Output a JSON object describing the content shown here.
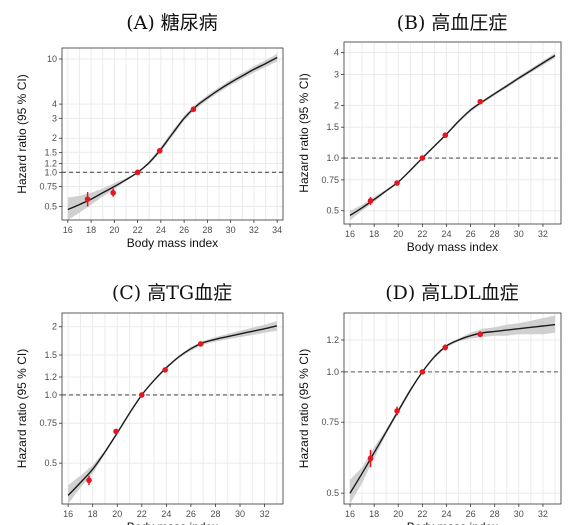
{
  "chart_data": [
    {
      "type": "line",
      "title": "(A) 糖尿病",
      "xlabel": "Body mass index",
      "ylabel": "Hazard ratio (95 % CI)",
      "y_scale": "log",
      "x_range": [
        15.5,
        34.5
      ],
      "y_range": [
        0.38,
        12.5
      ],
      "x_ticks": [
        16,
        18,
        20,
        22,
        24,
        26,
        28,
        30,
        32,
        34
      ],
      "y_ticks": [
        0.5,
        0.75,
        1.0,
        1.2,
        1.5,
        2,
        3,
        4,
        10
      ],
      "y_tick_labels": [
        "0.5",
        "0.75",
        "1.0",
        "1.2",
        "1.5",
        "2",
        "3",
        "4",
        "10"
      ],
      "reference_line": 1.0,
      "curve": {
        "x": [
          16.0,
          17.0,
          18.0,
          19.0,
          20.0,
          21.0,
          22.0,
          23.0,
          24.0,
          25.0,
          26.0,
          27.0,
          28.0,
          29.0,
          30.0,
          31.0,
          32.0,
          33.0,
          34.0
        ],
        "y": [
          0.47,
          0.52,
          0.58,
          0.66,
          0.75,
          0.86,
          1.0,
          1.22,
          1.6,
          2.2,
          3.0,
          3.8,
          4.55,
          5.35,
          6.2,
          7.1,
          8.1,
          9.1,
          10.3
        ],
        "lower": [
          0.38,
          0.44,
          0.52,
          0.61,
          0.71,
          0.84,
          1.0,
          1.18,
          1.52,
          2.08,
          2.85,
          3.62,
          4.33,
          5.08,
          5.88,
          6.7,
          7.6,
          8.5,
          9.5
        ],
        "upper": [
          0.6,
          0.62,
          0.66,
          0.72,
          0.8,
          0.89,
          1.0,
          1.26,
          1.68,
          2.32,
          3.16,
          3.99,
          4.78,
          5.64,
          6.55,
          7.52,
          8.62,
          9.75,
          11.1
        ]
      },
      "points": {
        "x": [
          17.7,
          19.9,
          22.0,
          23.9,
          26.8
        ],
        "y": [
          0.58,
          0.66,
          1.0,
          1.55,
          3.6
        ],
        "lower": [
          0.5,
          0.61,
          1.0,
          1.48,
          3.4
        ],
        "upper": [
          0.67,
          0.72,
          1.0,
          1.63,
          3.8
        ]
      }
    },
    {
      "type": "line",
      "title": "(B) 高血圧症",
      "xlabel": "Body mass index",
      "ylabel": "Hazard ratio (95 % CI)",
      "y_scale": "log",
      "x_range": [
        15.5,
        33.5
      ],
      "y_range": [
        0.42,
        4.6
      ],
      "x_ticks": [
        16,
        18,
        20,
        22,
        24,
        26,
        28,
        30,
        32
      ],
      "y_ticks": [
        0.5,
        0.75,
        1.0,
        1.5,
        2,
        3,
        4
      ],
      "y_tick_labels": [
        "0.5",
        "0.75",
        "1.0",
        "1.5",
        "2",
        "3",
        "4"
      ],
      "reference_line": 1.0,
      "curve": {
        "x": [
          16.0,
          17.0,
          18.0,
          19.0,
          20.0,
          21.0,
          22.0,
          23.0,
          24.0,
          25.0,
          26.0,
          27.0,
          28.0,
          29.0,
          30.0,
          31.0,
          32.0,
          33.0
        ],
        "y": [
          0.47,
          0.52,
          0.58,
          0.65,
          0.73,
          0.85,
          1.0,
          1.17,
          1.37,
          1.62,
          1.88,
          2.1,
          2.33,
          2.58,
          2.86,
          3.16,
          3.49,
          3.85
        ],
        "lower": [
          0.44,
          0.5,
          0.56,
          0.64,
          0.72,
          0.84,
          1.0,
          1.16,
          1.35,
          1.59,
          1.84,
          2.06,
          2.28,
          2.52,
          2.79,
          3.08,
          3.39,
          3.72
        ],
        "upper": [
          0.5,
          0.54,
          0.6,
          0.66,
          0.74,
          0.86,
          1.0,
          1.18,
          1.39,
          1.65,
          1.92,
          2.14,
          2.38,
          2.64,
          2.93,
          3.24,
          3.59,
          3.98
        ]
      },
      "points": {
        "x": [
          17.7,
          19.9,
          22.0,
          23.9,
          26.8
        ],
        "y": [
          0.57,
          0.72,
          1.0,
          1.35,
          2.1
        ],
        "lower": [
          0.54,
          0.7,
          1.0,
          1.32,
          2.05
        ],
        "upper": [
          0.6,
          0.74,
          1.0,
          1.38,
          2.15
        ]
      }
    },
    {
      "type": "line",
      "title": "(C) 高TG血症",
      "xlabel": "Body mass index",
      "ylabel": "Hazard ratio (95 % CI)",
      "y_scale": "log",
      "x_range": [
        15.5,
        33.5
      ],
      "y_range": [
        0.33,
        2.3
      ],
      "x_ticks": [
        16,
        18,
        20,
        22,
        24,
        26,
        28,
        30,
        32
      ],
      "y_ticks": [
        0.5,
        0.75,
        1.0,
        1.2,
        1.5,
        2
      ],
      "y_tick_labels": [
        "0.5",
        "0.75",
        "1.0",
        "1.2",
        "1.5",
        "2"
      ],
      "reference_line": 1.0,
      "curve": {
        "x": [
          16.0,
          17.0,
          18.0,
          19.0,
          20.0,
          21.0,
          22.0,
          23.0,
          24.0,
          25.0,
          26.0,
          27.0,
          28.0,
          29.0,
          30.0,
          31.0,
          32.0,
          33.0
        ],
        "y": [
          0.36,
          0.41,
          0.47,
          0.56,
          0.68,
          0.83,
          1.0,
          1.16,
          1.32,
          1.47,
          1.6,
          1.7,
          1.76,
          1.81,
          1.86,
          1.91,
          1.96,
          2.02
        ],
        "lower": [
          0.33,
          0.39,
          0.45,
          0.55,
          0.67,
          0.82,
          1.0,
          1.15,
          1.3,
          1.45,
          1.57,
          1.67,
          1.72,
          1.76,
          1.8,
          1.84,
          1.88,
          1.92
        ],
        "upper": [
          0.4,
          0.44,
          0.49,
          0.57,
          0.69,
          0.84,
          1.0,
          1.17,
          1.34,
          1.49,
          1.63,
          1.73,
          1.8,
          1.86,
          1.92,
          1.98,
          2.04,
          2.12
        ]
      },
      "points": {
        "x": [
          17.7,
          19.9,
          22.0,
          23.9,
          26.8
        ],
        "y": [
          0.42,
          0.69,
          1.0,
          1.29,
          1.68
        ],
        "lower": [
          0.4,
          0.68,
          1.0,
          1.27,
          1.66
        ],
        "upper": [
          0.44,
          0.7,
          1.0,
          1.31,
          1.7
        ]
      }
    },
    {
      "type": "line",
      "title": "(D) 高LDL血症",
      "xlabel": "Body mass index",
      "ylabel": "Hazard ratio (95 % CI)",
      "y_scale": "log",
      "x_range": [
        15.5,
        33.5
      ],
      "y_range": [
        0.47,
        1.4
      ],
      "x_ticks": [
        16,
        18,
        20,
        22,
        24,
        26,
        28,
        30,
        32
      ],
      "y_ticks": [
        0.5,
        0.75,
        1.0,
        1.2
      ],
      "y_tick_labels": [
        "0.5",
        "0.75",
        "1.0",
        "1.2"
      ],
      "reference_line": 1.0,
      "curve": {
        "x": [
          16.0,
          17.0,
          18.0,
          19.0,
          20.0,
          21.0,
          22.0,
          23.0,
          24.0,
          25.0,
          26.0,
          27.0,
          28.0,
          29.0,
          30.0,
          31.0,
          32.0,
          33.0
        ],
        "y": [
          0.5,
          0.56,
          0.63,
          0.71,
          0.8,
          0.9,
          1.0,
          1.09,
          1.16,
          1.2,
          1.23,
          1.25,
          1.26,
          1.27,
          1.28,
          1.29,
          1.3,
          1.31
        ],
        "lower": [
          0.47,
          0.53,
          0.61,
          0.7,
          0.79,
          0.89,
          1.0,
          1.08,
          1.15,
          1.19,
          1.21,
          1.22,
          1.23,
          1.23,
          1.24,
          1.24,
          1.24,
          1.25
        ],
        "upper": [
          0.54,
          0.58,
          0.65,
          0.72,
          0.81,
          0.91,
          1.0,
          1.1,
          1.17,
          1.21,
          1.25,
          1.28,
          1.29,
          1.31,
          1.32,
          1.34,
          1.36,
          1.38
        ]
      },
      "points": {
        "x": [
          17.7,
          19.9,
          22.0,
          23.9,
          26.8
        ],
        "y": [
          0.61,
          0.8,
          1.0,
          1.15,
          1.24
        ],
        "lower": [
          0.58,
          0.78,
          1.0,
          1.13,
          1.22
        ],
        "upper": [
          0.64,
          0.82,
          1.0,
          1.17,
          1.26
        ]
      }
    }
  ],
  "colors": {
    "curve": "#1a1a1a",
    "band": "#c8c8c8",
    "point": "#e8141e",
    "reference_line": "#555555",
    "grid": "#ebebeb",
    "frame": "#333333"
  }
}
